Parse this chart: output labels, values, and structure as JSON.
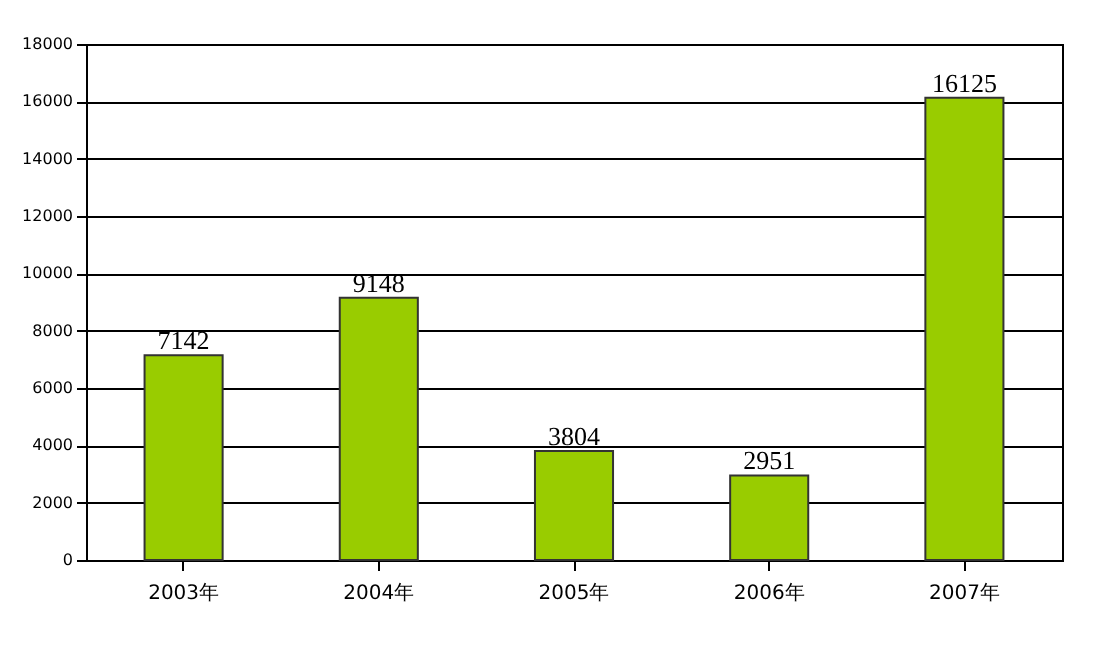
{
  "chart_data": {
    "type": "bar",
    "categories": [
      "2003年",
      "2004年",
      "2005年",
      "2006年",
      "2007年"
    ],
    "values": [
      7142,
      9148,
      3804,
      2951,
      16125
    ],
    "color": "#99cc00",
    "ylim": [
      0,
      18000
    ],
    "yticks": [
      0,
      2000,
      4000,
      6000,
      8000,
      10000,
      12000,
      14000,
      16000,
      18000
    ],
    "grid": "y",
    "data_labels": true
  }
}
